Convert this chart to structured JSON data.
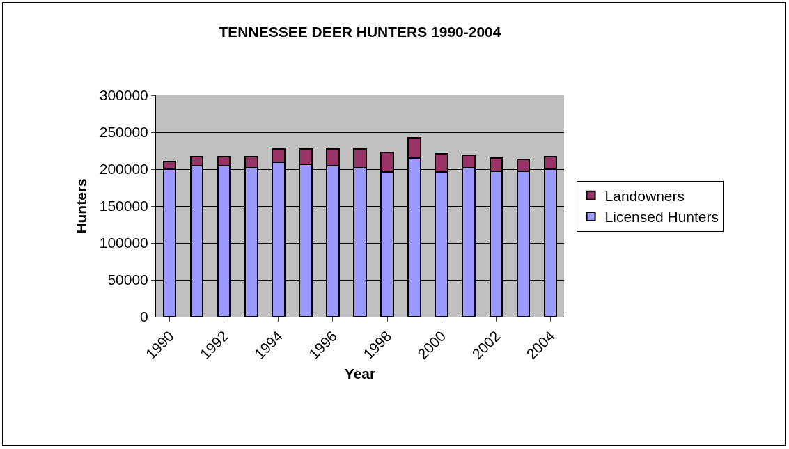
{
  "chart_data": {
    "type": "bar",
    "title": "TENNESSEE DEER HUNTERS 1990-2004",
    "xlabel": "Year",
    "ylabel": "Hunters",
    "categories": [
      "1990",
      null,
      "1992",
      null,
      "1994",
      null,
      "1996",
      null,
      "1998",
      null,
      "2000",
      null,
      "2002",
      null,
      "2004"
    ],
    "series": [
      {
        "name": "Licensed Hunters",
        "color": "#9999ff",
        "values": [
          200000,
          205000,
          205000,
          202000,
          209000,
          207000,
          205000,
          202000,
          196000,
          215000,
          196000,
          202000,
          197000,
          197000,
          200000
        ]
      },
      {
        "name": "Landowners",
        "color": "#993366",
        "values": [
          10000,
          12000,
          12000,
          15000,
          18000,
          20000,
          22000,
          25000,
          27000,
          27000,
          25000,
          17000,
          18000,
          16000,
          17000
        ]
      }
    ],
    "stacked": true,
    "ylim": [
      0,
      300000
    ],
    "yticks": [
      0,
      50000,
      100000,
      150000,
      200000,
      250000,
      300000
    ],
    "grid": "y",
    "legend": "right"
  }
}
